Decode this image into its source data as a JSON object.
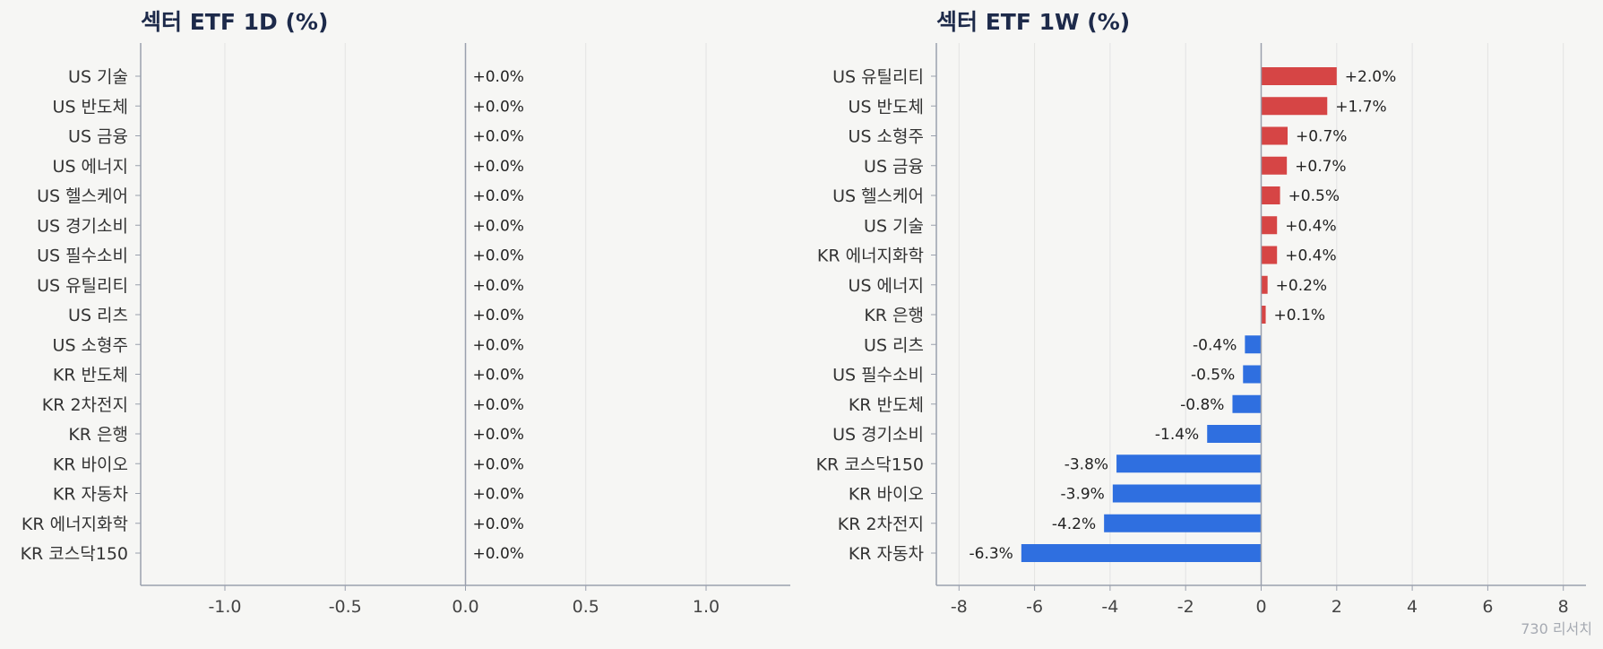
{
  "colors": {
    "background": "#f6f6f4",
    "title": "#1d2a4a",
    "positive": "#d64545",
    "negative": "#2f6fe0",
    "axis": "#9aa0ad",
    "grid": "#e3e3e3",
    "text": "#333333"
  },
  "watermark": "730 리서치",
  "chart_data": [
    {
      "type": "bar",
      "orientation": "horizontal",
      "title": "섹터 ETF 1D (%)",
      "xlabel": "",
      "ylabel": "",
      "xlim": [
        -1.35,
        1.35
      ],
      "xticks": [
        -1.0,
        -0.5,
        0.0,
        0.5,
        1.0
      ],
      "xtick_labels": [
        "-1.0",
        "-0.5",
        "0.0",
        "0.5",
        "1.0"
      ],
      "grid": "vertical",
      "categories": [
        "US 기술",
        "US 반도체",
        "US 금융",
        "US 에너지",
        "US 헬스케어",
        "US 경기소비",
        "US 필수소비",
        "US 유틸리티",
        "US 리츠",
        "US 소형주",
        "KR 반도체",
        "KR 2차전지",
        "KR 은행",
        "KR 바이오",
        "KR 자동차",
        "KR 에너지화학",
        "KR 코스닥150"
      ],
      "values": [
        0,
        0,
        0,
        0,
        0,
        0,
        0,
        0,
        0,
        0,
        0,
        0,
        0,
        0,
        0,
        0,
        0
      ],
      "value_labels": [
        "+0.0%",
        "+0.0%",
        "+0.0%",
        "+0.0%",
        "+0.0%",
        "+0.0%",
        "+0.0%",
        "+0.0%",
        "+0.0%",
        "+0.0%",
        "+0.0%",
        "+0.0%",
        "+0.0%",
        "+0.0%",
        "+0.0%",
        "+0.0%",
        "+0.0%"
      ]
    },
    {
      "type": "bar",
      "orientation": "horizontal",
      "title": "섹터 ETF 1W (%)",
      "xlabel": "",
      "ylabel": "",
      "xlim": [
        -8.6,
        8.6
      ],
      "xticks": [
        -8,
        -6,
        -4,
        -2,
        0,
        2,
        4,
        6,
        8
      ],
      "xtick_labels": [
        "-8",
        "-6",
        "-4",
        "-2",
        "0",
        "2",
        "4",
        "6",
        "8"
      ],
      "grid": "vertical",
      "categories": [
        "US 유틸리티",
        "US 반도체",
        "US 소형주",
        "US 금융",
        "US 헬스케어",
        "US 기술",
        "KR 에너지화학",
        "US 에너지",
        "KR 은행",
        "US 리츠",
        "US 필수소비",
        "KR 반도체",
        "US 경기소비",
        "KR 코스닥150",
        "KR 바이오",
        "KR 2차전지",
        "KR 자동차"
      ],
      "values": [
        2.0,
        1.75,
        0.7,
        0.68,
        0.5,
        0.42,
        0.42,
        0.17,
        0.12,
        -0.43,
        -0.48,
        -0.76,
        -1.43,
        -3.83,
        -3.93,
        -4.16,
        -6.35
      ],
      "value_labels": [
        "+2.0%",
        "+1.7%",
        "+0.7%",
        "+0.7%",
        "+0.5%",
        "+0.4%",
        "+0.4%",
        "+0.2%",
        "+0.1%",
        "-0.4%",
        "-0.5%",
        "-0.8%",
        "-1.4%",
        "-3.8%",
        "-3.9%",
        "-4.2%",
        "-6.3%"
      ]
    }
  ]
}
